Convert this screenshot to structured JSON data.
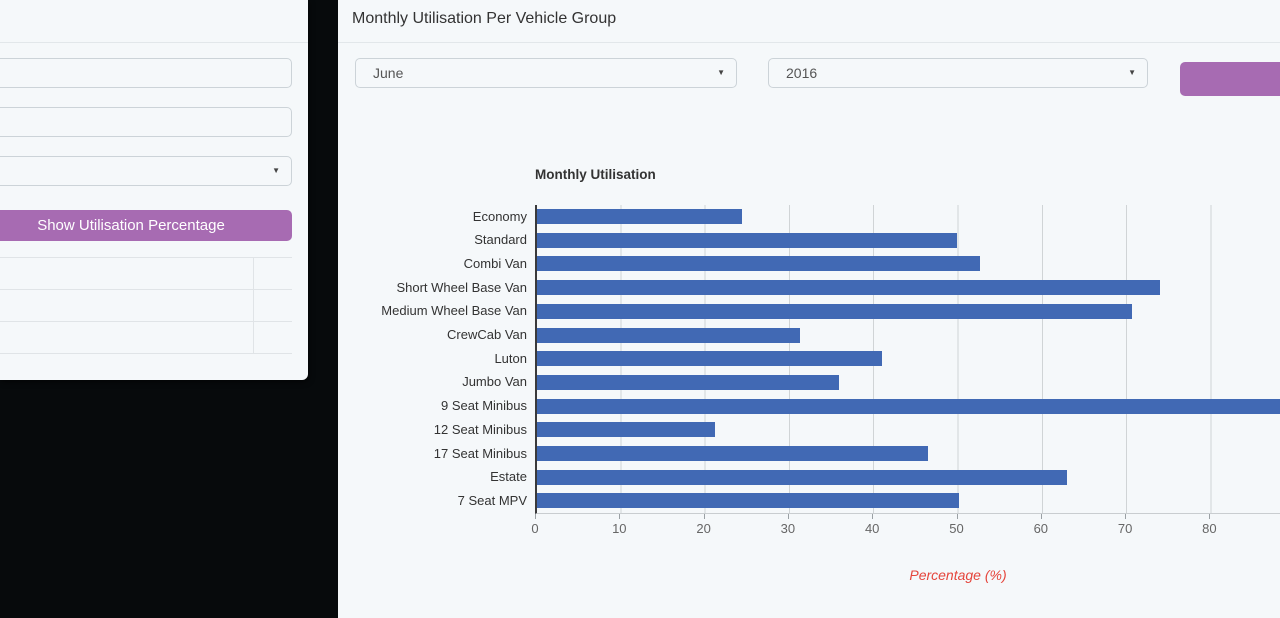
{
  "left_panel": {
    "fields": [
      {
        "value": "",
        "placeholder": ""
      },
      {
        "value": "",
        "placeholder": ""
      }
    ],
    "dropdown": {
      "value": ""
    },
    "show_utilisation_button_label": "Show Utilisation Percentage",
    "table": {
      "rows": [
        [
          "",
          ""
        ],
        [
          "",
          ""
        ],
        [
          "",
          ""
        ]
      ]
    }
  },
  "main_panel": {
    "title": "Monthly Utilisation Per Vehicle Group",
    "month_dropdown": {
      "value": "June"
    },
    "year_dropdown": {
      "value": "2016"
    },
    "action_button_label": ""
  },
  "chart_data": {
    "type": "bar",
    "orientation": "horizontal",
    "title": "Monthly Utilisation",
    "xlabel": "Percentage (%)",
    "categories": [
      "Economy",
      "Standard",
      "Combi Van",
      "Short Wheel Base Van",
      "Medium Wheel Base Van",
      "CrewCab Van",
      "Luton",
      "Jumbo Van",
      "9 Seat Minibus",
      "12 Seat Minibus",
      "17 Seat Minibus",
      "Estate",
      "7 Seat MPV"
    ],
    "values": [
      24.3,
      49.8,
      52.5,
      73.9,
      70.6,
      31.2,
      40.9,
      35.8,
      90,
      21.1,
      46.4,
      62.9,
      50.1
    ],
    "x_ticks": [
      0,
      10,
      20,
      30,
      40,
      50,
      60,
      70,
      80
    ],
    "xlim_visible": [
      0,
      88
    ],
    "grid": true,
    "note": "9 Seat Minibus bar is clipped at the right edge of the viewport (visible portion >= 88%)",
    "bar_color": "#4169b4",
    "xlabel_color": "#e5453c",
    "legend": "none"
  },
  "colors": {
    "accent_purple": "#a76bb2",
    "panel_bg": "#f5f8fa",
    "page_bg": "#070a0c",
    "gridline": "#d0d4d6",
    "axis_line": "#3a3a3c"
  }
}
